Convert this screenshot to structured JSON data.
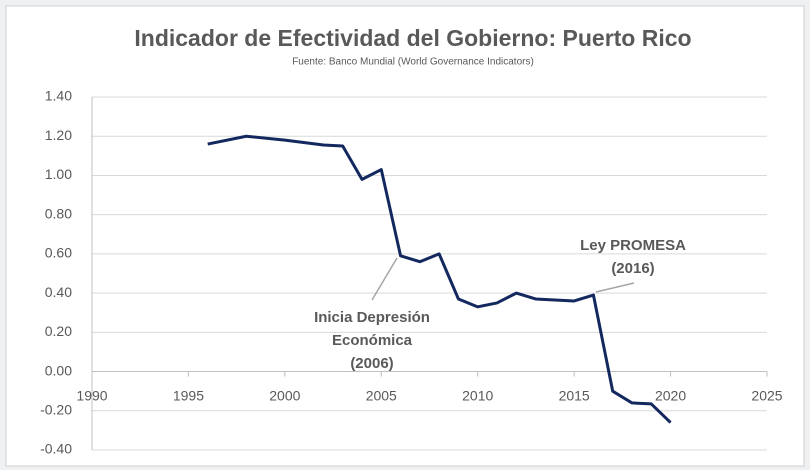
{
  "chart_data": {
    "type": "line",
    "title": "Indicador de Efectividad del Gobierno: Puerto Rico",
    "subtitle": "Fuente: Banco Mundial (World Governance Indicators)",
    "x": [
      1996,
      1998,
      2000,
      2002,
      2003,
      2004,
      2005,
      2006,
      2007,
      2008,
      2009,
      2010,
      2011,
      2012,
      2013,
      2014,
      2015,
      2016,
      2017,
      2018,
      2019,
      2020
    ],
    "series": [
      {
        "name": "Puerto Rico",
        "color": "#13285e",
        "values": [
          1.16,
          1.2,
          1.18,
          1.155,
          1.15,
          0.98,
          1.03,
          0.59,
          0.56,
          0.6,
          0.37,
          0.33,
          0.35,
          0.4,
          0.37,
          0.365,
          0.36,
          0.39,
          -0.1,
          -0.16,
          -0.165,
          -0.26
        ]
      }
    ],
    "xlim": [
      1990,
      2025
    ],
    "xticks": [
      1990,
      1995,
      2000,
      2005,
      2010,
      2015,
      2020,
      2025
    ],
    "ylim": [
      -0.4,
      1.4
    ],
    "yticks": [
      {
        "value": -0.4,
        "label": "-0.40"
      },
      {
        "value": -0.2,
        "label": "-0.20"
      },
      {
        "value": 0,
        "label": "0.00"
      },
      {
        "value": 0.2,
        "label": "0.20"
      },
      {
        "value": 0.4,
        "label": "0.40"
      },
      {
        "value": 0.6,
        "label": "0.60"
      },
      {
        "value": 0.8,
        "label": "0.80"
      },
      {
        "value": 1.0,
        "label": "1.00"
      },
      {
        "value": 1.2,
        "label": "1.20"
      },
      {
        "value": 1.4,
        "label": "1.40"
      }
    ],
    "grid": true,
    "annotations": [
      {
        "lines": [
          "Inicia Depresión",
          "Económica",
          "(2006)"
        ]
      },
      {
        "lines": [
          "Ley PROMESA",
          "(2016)"
        ]
      }
    ]
  }
}
